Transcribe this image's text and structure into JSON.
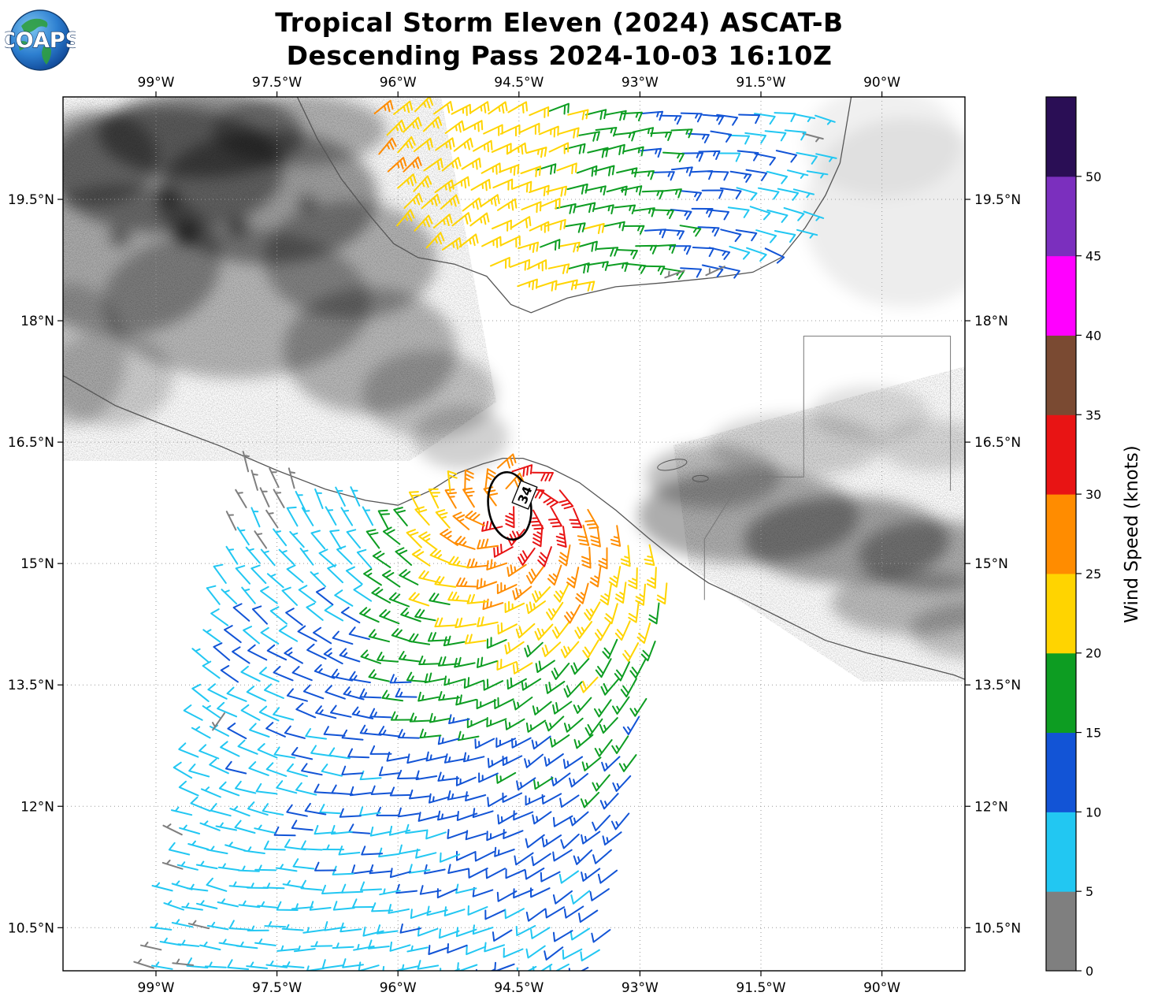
{
  "logo": {
    "text": "COAPS"
  },
  "title": {
    "line1": "Tropical Storm Eleven (2024) ASCAT-B",
    "line2": "Descending Pass 2024-10-03 16:10Z"
  },
  "axes": {
    "x_ticks": [
      {
        "label": "99°W"
      },
      {
        "label": "97.5°W"
      },
      {
        "label": "96°W"
      },
      {
        "label": "94.5°W"
      },
      {
        "label": "93°W"
      },
      {
        "label": "91.5°W"
      },
      {
        "label": "90°W"
      }
    ],
    "y_ticks": [
      {
        "label": "19.5°N"
      },
      {
        "label": "18°N"
      },
      {
        "label": "16.5°N"
      },
      {
        "label": "15°N"
      },
      {
        "label": "13.5°N"
      },
      {
        "label": "12°N"
      },
      {
        "label": "10.5°N"
      }
    ]
  },
  "colorbar": {
    "title": "Wind Speed (knots)",
    "tick_labels": [
      "0",
      "5",
      "10",
      "15",
      "20",
      "25",
      "30",
      "35",
      "40",
      "45",
      "50"
    ],
    "max_value": 55,
    "segment_colors": [
      "#7f7f7f",
      "#22c7f2",
      "#1254d6",
      "#0d9d22",
      "#ffd400",
      "#ff8c00",
      "#e81414",
      "#7a4a32",
      "#ff00ff",
      "#7b2fbe",
      "#2a0e55"
    ]
  },
  "storm": {
    "contour_label": "34"
  },
  "map": {
    "background": "#ffffff",
    "coast_color": "#555555",
    "grid_color": "#999999",
    "border_color": "#777777",
    "frame_color": "#000000"
  }
}
